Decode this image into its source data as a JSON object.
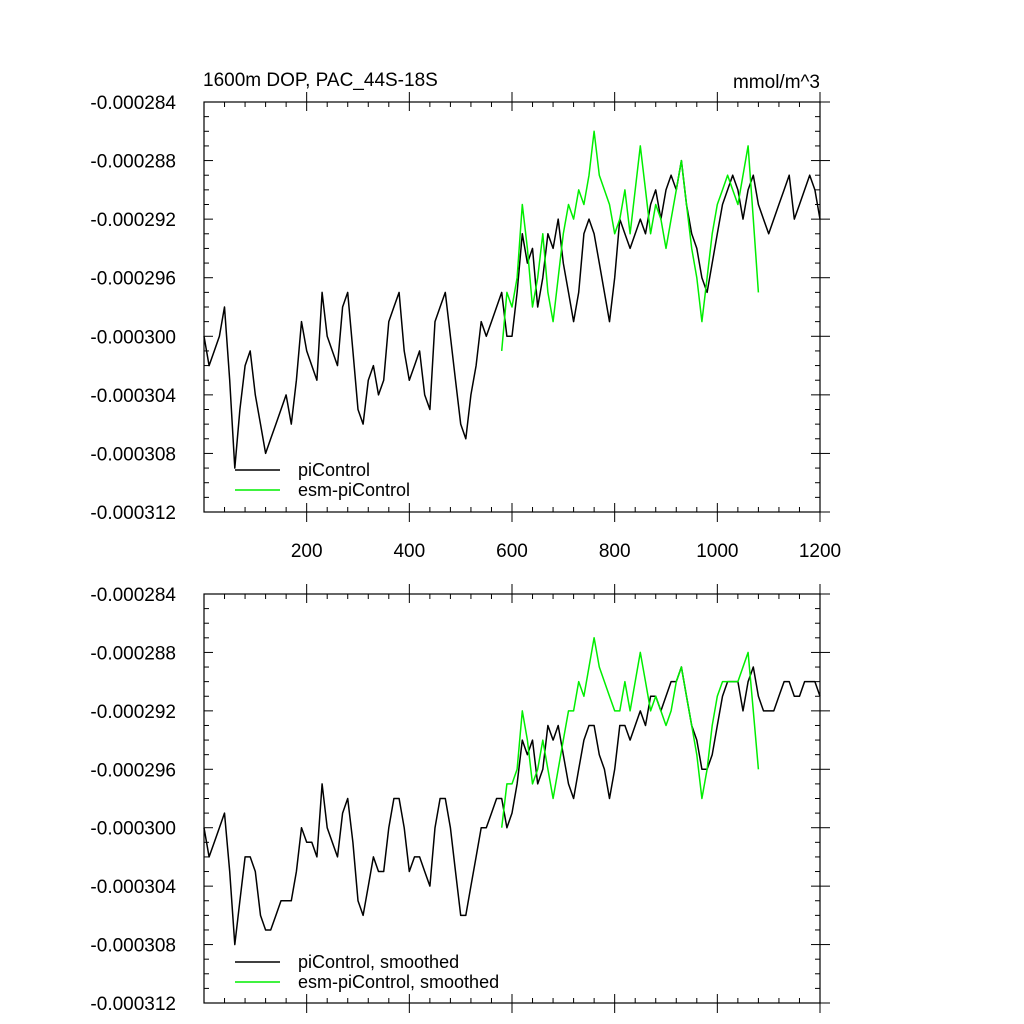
{
  "chart_data": [
    {
      "type": "line",
      "title": "1600m DOP, PAC_44S-18S",
      "units": "mmol/m^3",
      "xlim": [
        0,
        1200
      ],
      "ylim": [
        -0.000312,
        -0.000284
      ],
      "x_ticks": [
        200,
        400,
        600,
        800,
        1000,
        1200
      ],
      "x_tick_labels": [
        "200",
        "400",
        "600",
        "800",
        "1000",
        "1200"
      ],
      "y_ticks": [
        -0.000284,
        -0.000288,
        -0.000292,
        -0.000296,
        -0.0003,
        -0.000304,
        -0.000308,
        -0.000312
      ],
      "y_tick_labels": [
        "-0.000284",
        "-0.000288",
        "-0.000292",
        "-0.000296",
        "-0.000300",
        "-0.000304",
        "-0.000308",
        "-0.000312"
      ],
      "legend": [
        "piControl",
        "esm-piControl"
      ],
      "legend_position": "bottom-left",
      "series": [
        {
          "name": "piControl",
          "color": "#000000",
          "x": [
            0,
            10,
            20,
            30,
            40,
            50,
            60,
            70,
            80,
            90,
            100,
            110,
            120,
            130,
            140,
            150,
            160,
            170,
            180,
            190,
            200,
            210,
            220,
            230,
            240,
            250,
            260,
            270,
            280,
            290,
            300,
            310,
            320,
            330,
            340,
            350,
            360,
            370,
            380,
            390,
            400,
            410,
            420,
            430,
            440,
            450,
            460,
            470,
            480,
            490,
            500,
            510,
            520,
            530,
            540,
            550,
            560,
            570,
            580,
            590,
            600,
            610,
            620,
            630,
            640,
            650,
            660,
            670,
            680,
            690,
            700,
            710,
            720,
            730,
            740,
            750,
            760,
            770,
            780,
            790,
            800,
            810,
            820,
            830,
            840,
            850,
            860,
            870,
            880,
            890,
            900,
            910,
            920,
            930,
            940,
            950,
            960,
            970,
            980,
            990,
            1000,
            1010,
            1020,
            1030,
            1040,
            1050,
            1060,
            1070,
            1080,
            1090,
            1100,
            1110,
            1120,
            1130,
            1140,
            1150,
            1160,
            1170,
            1180,
            1190,
            1200
          ],
          "values": [
            -0.0003,
            -0.000302,
            -0.000301,
            -0.0003,
            -0.000298,
            -0.000303,
            -0.000309,
            -0.000305,
            -0.000302,
            -0.000301,
            -0.000304,
            -0.000306,
            -0.000308,
            -0.000307,
            -0.000306,
            -0.000305,
            -0.000304,
            -0.000306,
            -0.000303,
            -0.000299,
            -0.000301,
            -0.000302,
            -0.000303,
            -0.000297,
            -0.0003,
            -0.000301,
            -0.000302,
            -0.000298,
            -0.000297,
            -0.000301,
            -0.000305,
            -0.000306,
            -0.000303,
            -0.000302,
            -0.000304,
            -0.000303,
            -0.000299,
            -0.000298,
            -0.000297,
            -0.000301,
            -0.000303,
            -0.000302,
            -0.000301,
            -0.000304,
            -0.000305,
            -0.000299,
            -0.000298,
            -0.000297,
            -0.0003,
            -0.000303,
            -0.000306,
            -0.000307,
            -0.000304,
            -0.000302,
            -0.000299,
            -0.0003,
            -0.000299,
            -0.000298,
            -0.000297,
            -0.0003,
            -0.0003,
            -0.000297,
            -0.000293,
            -0.000295,
            -0.000294,
            -0.000298,
            -0.000296,
            -0.000293,
            -0.000294,
            -0.000292,
            -0.000295,
            -0.000297,
            -0.000299,
            -0.000297,
            -0.000293,
            -0.000292,
            -0.000293,
            -0.000295,
            -0.000297,
            -0.000299,
            -0.000296,
            -0.000292,
            -0.000293,
            -0.000294,
            -0.000293,
            -0.000292,
            -0.000293,
            -0.000291,
            -0.00029,
            -0.000292,
            -0.00029,
            -0.000289,
            -0.00029,
            -0.000288,
            -0.000291,
            -0.000293,
            -0.000294,
            -0.000296,
            -0.000297,
            -0.000295,
            -0.000293,
            -0.000291,
            -0.00029,
            -0.000289,
            -0.00029,
            -0.000292,
            -0.00029,
            -0.000289,
            -0.000291,
            -0.000292,
            -0.000293,
            -0.000292,
            -0.000291,
            -0.00029,
            -0.000289,
            -0.000292,
            -0.000291,
            -0.00029,
            -0.000289,
            -0.00029,
            -0.000292
          ]
        },
        {
          "name": "esm-piControl",
          "color": "#00ee00",
          "x": [
            580,
            590,
            600,
            610,
            620,
            630,
            640,
            650,
            660,
            670,
            680,
            690,
            700,
            710,
            720,
            730,
            740,
            750,
            760,
            770,
            780,
            790,
            800,
            810,
            820,
            830,
            840,
            850,
            860,
            870,
            880,
            890,
            900,
            910,
            920,
            930,
            940,
            950,
            960,
            970,
            980,
            990,
            1000,
            1010,
            1020,
            1030,
            1040,
            1050,
            1060,
            1070,
            1080
          ],
          "values": [
            -0.000301,
            -0.000297,
            -0.000298,
            -0.000296,
            -0.000291,
            -0.000294,
            -0.000298,
            -0.000296,
            -0.000293,
            -0.000297,
            -0.000299,
            -0.000296,
            -0.000293,
            -0.000291,
            -0.000292,
            -0.00029,
            -0.000291,
            -0.000289,
            -0.000286,
            -0.000289,
            -0.00029,
            -0.000291,
            -0.000293,
            -0.000292,
            -0.00029,
            -0.000293,
            -0.00029,
            -0.000287,
            -0.00029,
            -0.000293,
            -0.000291,
            -0.000292,
            -0.000294,
            -0.000292,
            -0.00029,
            -0.000288,
            -0.000291,
            -0.000294,
            -0.000296,
            -0.000299,
            -0.000296,
            -0.000293,
            -0.000291,
            -0.00029,
            -0.000289,
            -0.00029,
            -0.000291,
            -0.000289,
            -0.000287,
            -0.000292,
            -0.000297
          ]
        }
      ]
    },
    {
      "type": "line",
      "title": "",
      "xlim": [
        0,
        1200
      ],
      "ylim": [
        -0.000312,
        -0.000284
      ],
      "x_ticks": [
        200,
        400,
        600,
        800,
        1000,
        1200
      ],
      "y_ticks": [
        -0.000284,
        -0.000288,
        -0.000292,
        -0.000296,
        -0.0003,
        -0.000304,
        -0.000308,
        -0.000312
      ],
      "y_tick_labels": [
        "-0.000284",
        "-0.000288",
        "-0.000292",
        "-0.000296",
        "-0.000300",
        "-0.000304",
        "-0.000308",
        "-0.000312"
      ],
      "legend": [
        "piControl, smoothed",
        "esm-piControl, smoothed"
      ],
      "legend_position": "bottom-left",
      "series": [
        {
          "name": "piControl, smoothed",
          "color": "#000000",
          "x": [
            0,
            10,
            20,
            30,
            40,
            50,
            60,
            70,
            80,
            90,
            100,
            110,
            120,
            130,
            140,
            150,
            160,
            170,
            180,
            190,
            200,
            210,
            220,
            230,
            240,
            250,
            260,
            270,
            280,
            290,
            300,
            310,
            320,
            330,
            340,
            350,
            360,
            370,
            380,
            390,
            400,
            410,
            420,
            430,
            440,
            450,
            460,
            470,
            480,
            490,
            500,
            510,
            520,
            530,
            540,
            550,
            560,
            570,
            580,
            590,
            600,
            610,
            620,
            630,
            640,
            650,
            660,
            670,
            680,
            690,
            700,
            710,
            720,
            730,
            740,
            750,
            760,
            770,
            780,
            790,
            800,
            810,
            820,
            830,
            840,
            850,
            860,
            870,
            880,
            890,
            900,
            910,
            920,
            930,
            940,
            950,
            960,
            970,
            980,
            990,
            1000,
            1010,
            1020,
            1030,
            1040,
            1050,
            1060,
            1070,
            1080,
            1090,
            1100,
            1110,
            1120,
            1130,
            1140,
            1150,
            1160,
            1170,
            1180,
            1190,
            1200
          ],
          "values": [
            -0.0003,
            -0.000302,
            -0.000301,
            -0.0003,
            -0.000299,
            -0.000303,
            -0.000308,
            -0.000305,
            -0.000302,
            -0.000302,
            -0.000303,
            -0.000306,
            -0.000307,
            -0.000307,
            -0.000306,
            -0.000305,
            -0.000305,
            -0.000305,
            -0.000303,
            -0.0003,
            -0.000301,
            -0.000301,
            -0.000302,
            -0.000297,
            -0.0003,
            -0.000301,
            -0.000302,
            -0.000299,
            -0.000298,
            -0.000301,
            -0.000305,
            -0.000306,
            -0.000304,
            -0.000302,
            -0.000303,
            -0.000303,
            -0.0003,
            -0.000298,
            -0.000298,
            -0.0003,
            -0.000303,
            -0.000302,
            -0.000302,
            -0.000303,
            -0.000304,
            -0.0003,
            -0.000298,
            -0.000298,
            -0.0003,
            -0.000303,
            -0.000306,
            -0.000306,
            -0.000304,
            -0.000302,
            -0.0003,
            -0.0003,
            -0.000299,
            -0.000298,
            -0.000298,
            -0.0003,
            -0.000299,
            -0.000297,
            -0.000294,
            -0.000295,
            -0.000294,
            -0.000297,
            -0.000296,
            -0.000293,
            -0.000294,
            -0.000293,
            -0.000295,
            -0.000297,
            -0.000298,
            -0.000296,
            -0.000294,
            -0.000293,
            -0.000293,
            -0.000295,
            -0.000296,
            -0.000298,
            -0.000296,
            -0.000293,
            -0.000293,
            -0.000294,
            -0.000293,
            -0.000292,
            -0.000293,
            -0.000291,
            -0.000291,
            -0.000292,
            -0.000291,
            -0.00029,
            -0.00029,
            -0.000289,
            -0.000291,
            -0.000293,
            -0.000294,
            -0.000296,
            -0.000296,
            -0.000295,
            -0.000293,
            -0.000291,
            -0.00029,
            -0.00029,
            -0.00029,
            -0.000292,
            -0.00029,
            -0.000289,
            -0.000291,
            -0.000292,
            -0.000292,
            -0.000292,
            -0.000291,
            -0.00029,
            -0.00029,
            -0.000291,
            -0.000291,
            -0.00029,
            -0.00029,
            -0.00029,
            -0.000291
          ]
        },
        {
          "name": "esm-piControl, smoothed",
          "color": "#00ee00",
          "x": [
            580,
            590,
            600,
            610,
            620,
            630,
            640,
            650,
            660,
            670,
            680,
            690,
            700,
            710,
            720,
            730,
            740,
            750,
            760,
            770,
            780,
            790,
            800,
            810,
            820,
            830,
            840,
            850,
            860,
            870,
            880,
            890,
            900,
            910,
            920,
            930,
            940,
            950,
            960,
            970,
            980,
            990,
            1000,
            1010,
            1020,
            1030,
            1040,
            1050,
            1060,
            1070,
            1080
          ],
          "values": [
            -0.0003,
            -0.000297,
            -0.000297,
            -0.000296,
            -0.000292,
            -0.000294,
            -0.000297,
            -0.000296,
            -0.000294,
            -0.000296,
            -0.000298,
            -0.000296,
            -0.000294,
            -0.000292,
            -0.000292,
            -0.00029,
            -0.000291,
            -0.000289,
            -0.000287,
            -0.000289,
            -0.00029,
            -0.000291,
            -0.000292,
            -0.000292,
            -0.00029,
            -0.000292,
            -0.00029,
            -0.000288,
            -0.00029,
            -0.000292,
            -0.000291,
            -0.000292,
            -0.000293,
            -0.000292,
            -0.00029,
            -0.000289,
            -0.000291,
            -0.000293,
            -0.000295,
            -0.000298,
            -0.000296,
            -0.000293,
            -0.000291,
            -0.00029,
            -0.00029,
            -0.00029,
            -0.00029,
            -0.000289,
            -0.000288,
            -0.000292,
            -0.000296
          ]
        }
      ]
    }
  ]
}
